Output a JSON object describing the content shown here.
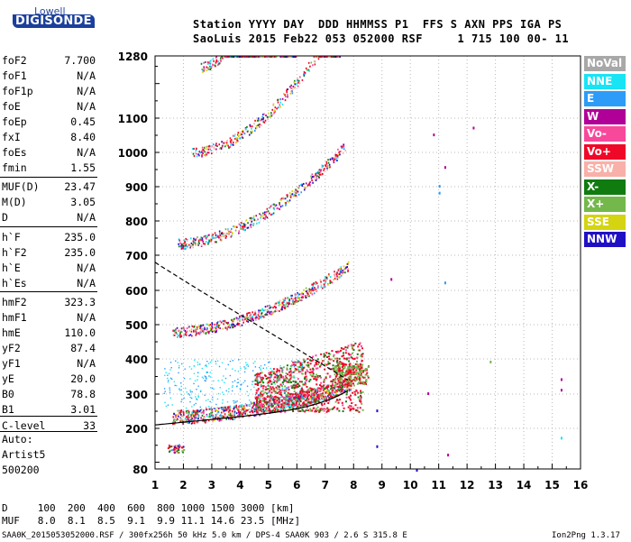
{
  "logo": {
    "top": "Lowell",
    "bottom": "DIGISONDE"
  },
  "header": {
    "line1": "Station YYYY DAY  DDD HHMMSS P1  FFS S AXN PPS IGA PS",
    "line2": "SaoLuis 2015 Feb22 053 052000 RSF     1 715 100 00- 11"
  },
  "params": [
    {
      "k": "foF2",
      "v": "7.700"
    },
    {
      "k": "foF1",
      "v": "N/A"
    },
    {
      "k": "foF1p",
      "v": "N/A"
    },
    {
      "k": "foE",
      "v": "N/A"
    },
    {
      "k": "foEp",
      "v": "0.45"
    },
    {
      "k": "fxI",
      "v": "8.40"
    },
    {
      "k": "foEs",
      "v": "N/A"
    },
    {
      "k": "fmin",
      "v": "1.55"
    },
    {
      "k": "MUF(D)",
      "v": "23.47"
    },
    {
      "k": "M(D)",
      "v": "3.05"
    },
    {
      "k": "D",
      "v": "N/A"
    },
    {
      "k": "h`F",
      "v": "235.0"
    },
    {
      "k": "h`F2",
      "v": "235.0"
    },
    {
      "k": "h`E",
      "v": "N/A"
    },
    {
      "k": "h`Es",
      "v": "N/A"
    },
    {
      "k": "hmF2",
      "v": "323.3"
    },
    {
      "k": "hmF1",
      "v": "N/A"
    },
    {
      "k": "hmE",
      "v": "110.0"
    },
    {
      "k": "yF2",
      "v": "87.4"
    },
    {
      "k": "yF1",
      "v": "N/A"
    },
    {
      "k": "yE",
      "v": "20.0"
    },
    {
      "k": "B0",
      "v": "78.8"
    },
    {
      "k": "B1",
      "v": "3.01"
    },
    {
      "k": "C-level",
      "v": "33"
    }
  ],
  "autoscale": {
    "line1": "Auto:",
    "line2": "Artist5",
    "line3": "500200"
  },
  "legend": [
    {
      "label": "NoVal",
      "color": "#a8a8a8"
    },
    {
      "label": "NNE",
      "color": "#18e4f4"
    },
    {
      "label": "E",
      "color": "#2c9cf8"
    },
    {
      "label": "W",
      "color": "#b00098"
    },
    {
      "label": "Vo-",
      "color": "#f8489c"
    },
    {
      "label": "Vo+",
      "color": "#f00828"
    },
    {
      "label": "SSW",
      "color": "#f8b0a8"
    },
    {
      "label": "X-",
      "color": "#107c10"
    },
    {
      "label": "X+",
      "color": "#74b84c"
    },
    {
      "label": "SSE",
      "color": "#d4d410"
    },
    {
      "label": "NNW",
      "color": "#2010c4"
    }
  ],
  "ionogram": {
    "freq_ticks": [
      "1",
      "2",
      "3",
      "4",
      "5",
      "6",
      "7",
      "8",
      "9",
      "10",
      "11",
      "12",
      "13",
      "14",
      "15",
      "16"
    ],
    "height_ticks": [
      "80",
      "200",
      "300",
      "400",
      "500",
      "600",
      "700",
      "800",
      "900",
      "1000",
      "1100",
      "1280"
    ]
  },
  "dmuf": {
    "row1": "D     100  200  400  600  800 1000 1500 3000 [km]",
    "row2": "MUF   8.0  8.1  8.5  9.1  9.9 11.1 14.6 23.5 [MHz]"
  },
  "footer": {
    "left": "SAA0K_2015053052000.RSF / 300fx256h 50 kHz 5.0 km / DPS-4 SAA0K 903 / 2.6 S 315.8 E",
    "right": "Ion2Png 1.3.17"
  }
}
